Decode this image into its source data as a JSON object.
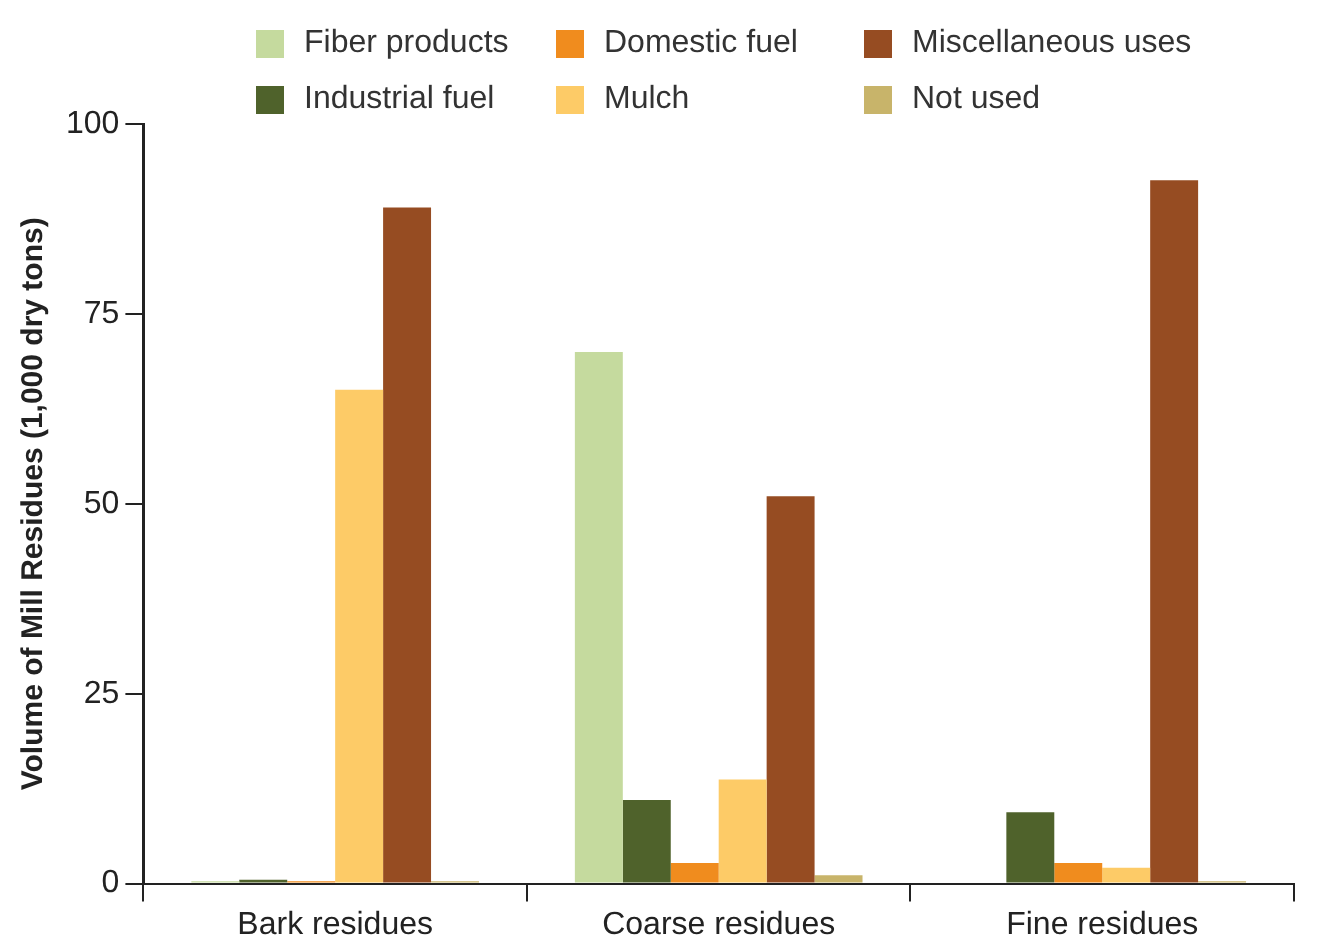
{
  "chart_data": {
    "type": "bar",
    "ylabel": "Volume of Mill Residues (1,000 dry tons)",
    "categories": [
      "Bark residues",
      "Coarse residues",
      "Fine residues"
    ],
    "series": [
      {
        "name": "Fiber products",
        "color": "#c5da9e",
        "values": [
          0.3,
          70,
          0
        ]
      },
      {
        "name": "Industrial fuel",
        "color": "#4f622b",
        "values": [
          0.5,
          11,
          9.4
        ]
      },
      {
        "name": "Domestic fuel",
        "color": "#f08c1e",
        "values": [
          0.3,
          2.7,
          2.7
        ]
      },
      {
        "name": "Mulch",
        "color": "#fdcb67",
        "values": [
          65,
          13.7,
          2.1
        ]
      },
      {
        "name": "Miscellaneous uses",
        "color": "#964c22",
        "values": [
          89,
          51,
          92.6
        ]
      },
      {
        "name": "Not used",
        "color": "#c8b46a",
        "values": [
          0.3,
          1.1,
          0.3
        ]
      }
    ],
    "ylim": [
      0,
      100
    ],
    "yticks": [
      0,
      25,
      50,
      75,
      100
    ],
    "grid": false,
    "legend": "top"
  }
}
